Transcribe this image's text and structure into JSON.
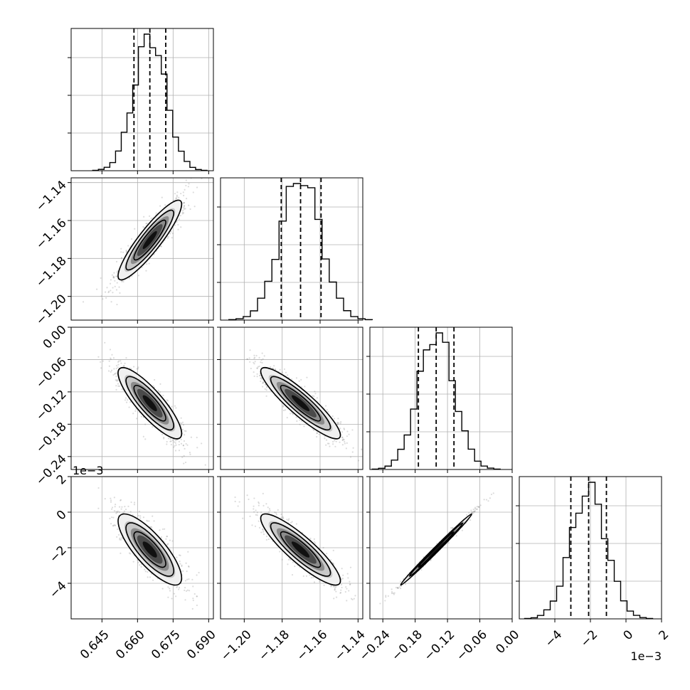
{
  "chart_data": {
    "type": "corner",
    "grid": true,
    "parameters": [
      {
        "index": 0,
        "range": [
          0.632,
          0.692
        ],
        "ticks": [
          0.645,
          0.66,
          0.675,
          0.69
        ],
        "tick_labels": [
          "0.645",
          "0.660",
          "0.675",
          "0.690"
        ],
        "quantiles": [
          0.6585,
          0.6652,
          0.6719
        ],
        "mean": 0.6652,
        "std": 0.0067,
        "offset_label": ""
      },
      {
        "index": 1,
        "range": [
          -1.2125,
          -1.1375
        ],
        "ticks": [
          -1.2,
          -1.18,
          -1.16,
          -1.14
        ],
        "tick_labels": [
          "−1.20",
          "−1.18",
          "−1.16",
          "−1.14"
        ],
        "quantiles": [
          -1.1805,
          -1.1703,
          -1.1595
        ],
        "mean": -1.1703,
        "std": 0.0105,
        "offset_label": ""
      },
      {
        "index": 2,
        "range": [
          -0.264,
          0.0
        ],
        "ticks": [
          -0.24,
          -0.18,
          -0.12,
          -0.06,
          0.0
        ],
        "tick_labels": [
          "−0.24",
          "−0.18",
          "−0.12",
          "−0.06",
          "0.00"
        ],
        "quantiles": [
          -0.174,
          -0.141,
          -0.108
        ],
        "mean": -0.141,
        "std": 0.033,
        "offset_label": ""
      },
      {
        "index": 3,
        "range": [
          -6.0,
          2.0
        ],
        "ticks": [
          -4,
          -2,
          0,
          2
        ],
        "tick_labels": [
          "−4",
          "−2",
          "0",
          "2"
        ],
        "quantiles": [
          -3.1,
          -2.1,
          -1.1
        ],
        "mean": -2.1,
        "std": 1.0,
        "offset_label": "1e−3"
      }
    ],
    "correlations": [
      {
        "pair": [
          0,
          1
        ],
        "rho": 0.9
      },
      {
        "pair": [
          0,
          2
        ],
        "rho": -0.85
      },
      {
        "pair": [
          1,
          2
        ],
        "rho": -0.9
      },
      {
        "pair": [
          0,
          3
        ],
        "rho": -0.8
      },
      {
        "pair": [
          1,
          3
        ],
        "rho": -0.88
      },
      {
        "pair": [
          2,
          3
        ],
        "rho": 0.995
      }
    ],
    "histogram_bins": 20,
    "contour_levels_sigma": [
      1.0,
      1.5,
      2.0
    ]
  },
  "colors": {
    "hist_line": "#000000",
    "quantile_line": "#000000",
    "grid": "#b0b0b0",
    "scatter_points": "#808080",
    "contour_line": "#000000",
    "density_shades": [
      "#f0f0f0",
      "#c8c8c8",
      "#8c8c8c",
      "#4a4a4a",
      "#111111"
    ]
  }
}
